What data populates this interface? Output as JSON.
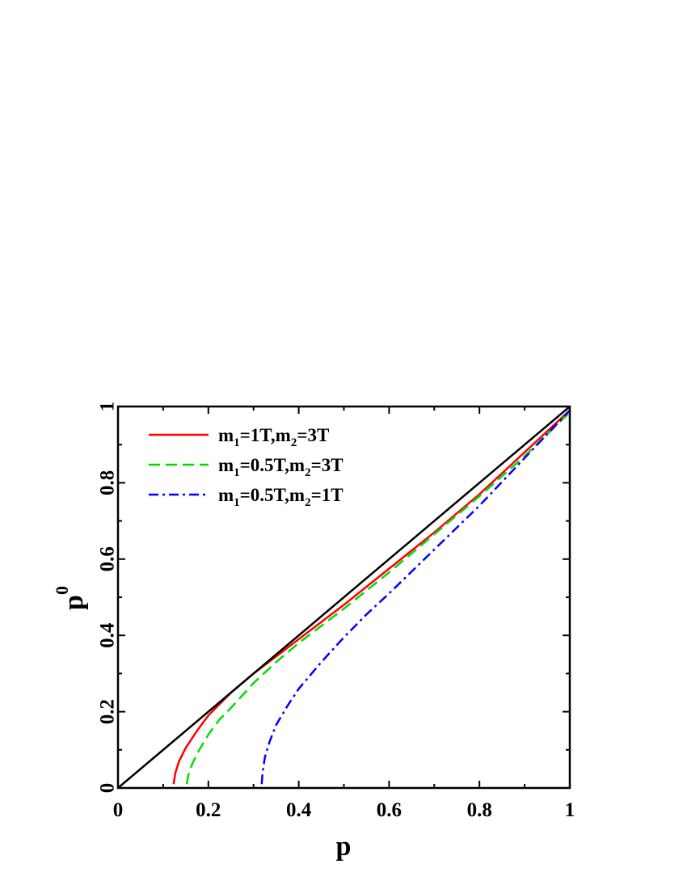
{
  "chart_data": {
    "type": "line",
    "xlabel": "p",
    "ylabel": "p",
    "ylabel_superscript": "0",
    "xlim": [
      0,
      1
    ],
    "ylim": [
      0,
      1
    ],
    "x_ticks": [
      "0",
      "0.2",
      "0.4",
      "0.6",
      "0.8",
      "1"
    ],
    "y_ticks": [
      "0",
      "0.2",
      "0.4",
      "0.6",
      "0.8",
      "1"
    ],
    "grid": false,
    "legend_position": "top-left",
    "series": [
      {
        "legend": {
          "m1": "m",
          "sub1": "1",
          "eq1": "=1T,",
          "m2": "m",
          "sub2": "2",
          "eq2": "=3T"
        },
        "color": "#ff0000",
        "dash": "solid",
        "x": [
          0.123,
          0.127,
          0.135,
          0.15,
          0.175,
          0.2,
          0.25,
          0.3,
          0.35,
          0.4,
          0.5,
          0.6,
          0.7,
          0.8,
          0.9,
          1.0
        ],
        "y": [
          0.01,
          0.04,
          0.07,
          0.105,
          0.15,
          0.19,
          0.25,
          0.3,
          0.345,
          0.39,
          0.48,
          0.575,
          0.67,
          0.77,
          0.88,
          0.99
        ]
      },
      {
        "legend": {
          "m1": "m",
          "sub1": "1",
          "eq1": "=0.5T,",
          "m2": "m",
          "sub2": "2",
          "eq2": "=3T"
        },
        "color": "#00dd00",
        "dash": "dashed",
        "x": [
          0.152,
          0.156,
          0.165,
          0.18,
          0.2,
          0.225,
          0.25,
          0.3,
          0.35,
          0.4,
          0.5,
          0.6,
          0.7,
          0.8,
          0.9,
          1.0
        ],
        "y": [
          0.01,
          0.035,
          0.065,
          0.1,
          0.14,
          0.18,
          0.21,
          0.275,
          0.33,
          0.38,
          0.47,
          0.565,
          0.665,
          0.765,
          0.87,
          0.985
        ]
      },
      {
        "legend": {
          "m1": "m",
          "sub1": "1",
          "eq1": "=0.5T,",
          "m2": "m",
          "sub2": "2",
          "eq2": "=1T"
        },
        "color": "#0000ff",
        "dash": "dashdot",
        "x": [
          0.318,
          0.32,
          0.325,
          0.335,
          0.35,
          0.375,
          0.4,
          0.45,
          0.5,
          0.55,
          0.6,
          0.7,
          0.8,
          0.9,
          1.0
        ],
        "y": [
          0.01,
          0.04,
          0.08,
          0.12,
          0.165,
          0.215,
          0.26,
          0.33,
          0.395,
          0.455,
          0.51,
          0.625,
          0.74,
          0.865,
          0.99
        ]
      },
      {
        "legend": null,
        "color": "#000000",
        "dash": "solid",
        "x": [
          0,
          1
        ],
        "y": [
          0,
          1
        ]
      }
    ]
  }
}
